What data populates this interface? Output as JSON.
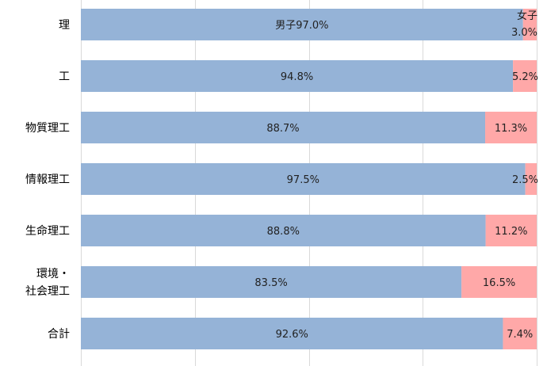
{
  "chart_data": {
    "type": "bar",
    "orientation": "horizontal",
    "stacked": "percent",
    "categories": [
      [
        "理"
      ],
      [
        "工"
      ],
      [
        "物質理工"
      ],
      [
        "情報理工"
      ],
      [
        "生命理工"
      ],
      [
        "環境・",
        "社会理工"
      ],
      [
        "合計"
      ]
    ],
    "series": [
      {
        "name": "男子",
        "color": "#95b3d7",
        "values": [
          97.0,
          94.8,
          88.7,
          97.5,
          88.8,
          83.5,
          92.6
        ],
        "labels": [
          "男子97.0%",
          "94.8%",
          "88.7%",
          "97.5%",
          "88.8%",
          "83.5%",
          "92.6%"
        ]
      },
      {
        "name": "女子",
        "color": "#ffa8a8",
        "values": [
          3.0,
          5.2,
          11.3,
          2.5,
          11.2,
          16.5,
          7.4
        ],
        "labels": [
          "3.0%",
          "5.2%",
          "11.3%",
          "2.5%",
          "11.2%",
          "16.5%",
          "7.4%"
        ]
      }
    ],
    "xlim": [
      0,
      100
    ],
    "grid": true,
    "legend": "none"
  }
}
